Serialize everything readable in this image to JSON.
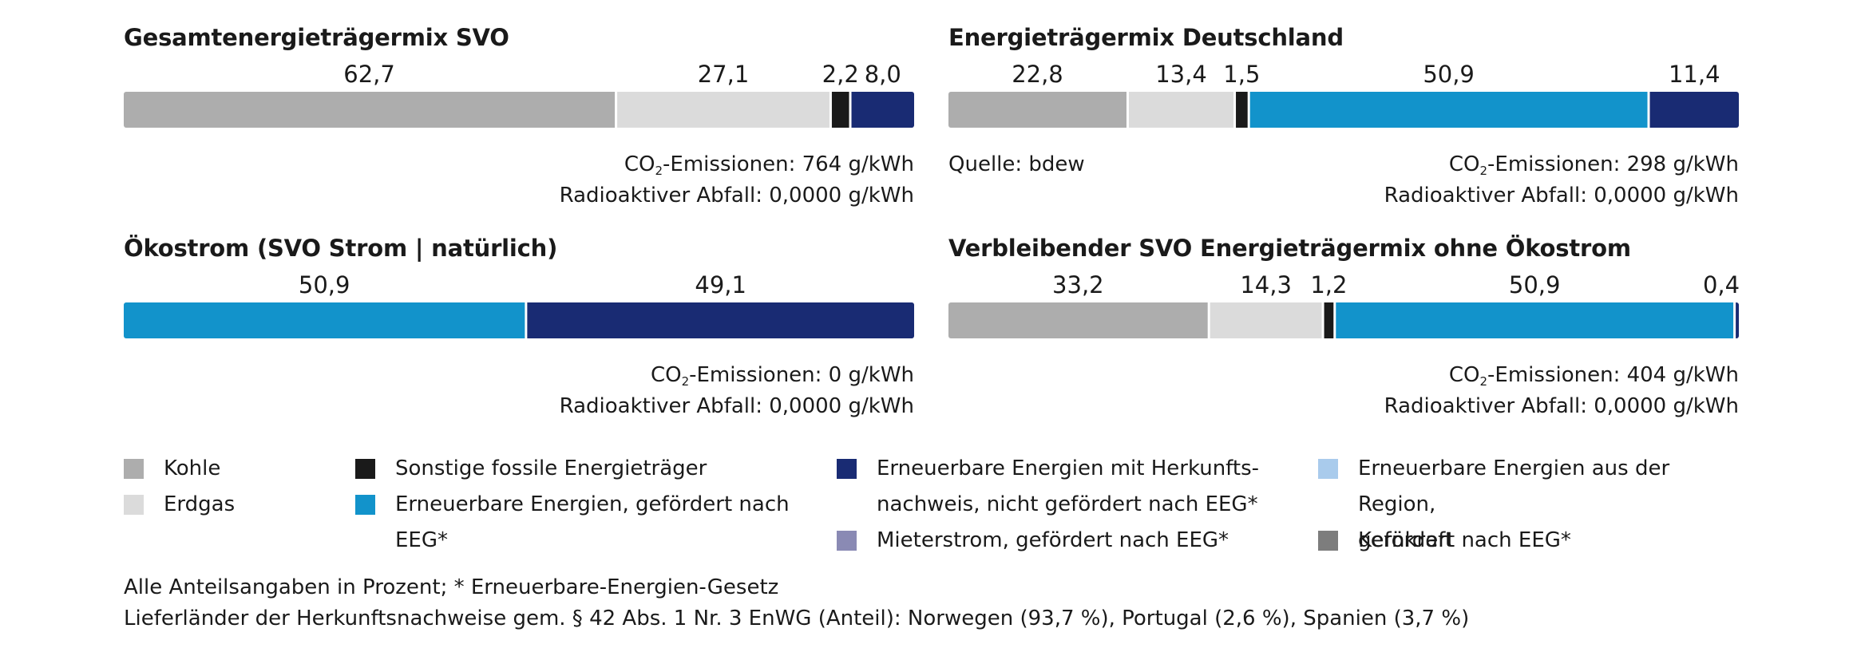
{
  "colors": {
    "kohle": "#adadad",
    "erdgas": "#dbdbdb",
    "sonstige": "#1a1a1a",
    "eeg": "#1293cb",
    "hkn": "#192b73",
    "region": "#a9cbec",
    "mieterstrom": "#8a8ab4",
    "kernkraft": "#7d7d7d"
  },
  "chart_data": [
    {
      "type": "stacked-bar",
      "title": "Gesamtenergieträgermix SVO",
      "unit": "Prozent",
      "segments": [
        {
          "category": "kohle",
          "label": "Kohle",
          "value": 62.7,
          "text": "62,7"
        },
        {
          "category": "erdgas",
          "label": "Erdgas",
          "value": 27.1,
          "text": "27,1"
        },
        {
          "category": "sonstige",
          "label": "Sonstige fossile Energieträger",
          "value": 2.2,
          "text": "2,2"
        },
        {
          "category": "hkn",
          "label": "Erneuerbare Energien mit Herkunftsnachweis",
          "value": 8.0,
          "text": "8,0"
        }
      ],
      "info": {
        "co2_prefix": "CO",
        "co2_sub": "2",
        "co2_text": "-Emissionen: 764 g/kWh",
        "waste": "Radioaktiver Abfall: 0,0000 g/kWh"
      }
    },
    {
      "type": "stacked-bar",
      "title": "Energieträgermix Deutschland",
      "unit": "Prozent",
      "segments": [
        {
          "category": "kohle",
          "label": "Kohle",
          "value": 22.8,
          "text": "22,8"
        },
        {
          "category": "erdgas",
          "label": "Erdgas",
          "value": 13.4,
          "text": "13,4"
        },
        {
          "category": "sonstige",
          "label": "Sonstige fossile Energieträger",
          "value": 1.5,
          "text": "1,5"
        },
        {
          "category": "eeg",
          "label": "Erneuerbare Energien, gefördert nach EEG",
          "value": 50.9,
          "text": "50,9"
        },
        {
          "category": "hkn",
          "label": "Erneuerbare Energien mit Herkunftsnachweis",
          "value": 11.4,
          "text": "11,4"
        }
      ],
      "source": "Quelle: bdew",
      "info": {
        "co2_prefix": "CO",
        "co2_sub": "2",
        "co2_text": "-Emissionen: 298 g/kWh",
        "waste": "Radioaktiver Abfall: 0,0000 g/kWh"
      }
    },
    {
      "type": "stacked-bar",
      "title": "Ökostrom (SVO Strom | natürlich)",
      "unit": "Prozent",
      "segments": [
        {
          "category": "eeg",
          "label": "Erneuerbare Energien, gefördert nach EEG",
          "value": 50.9,
          "text": "50,9"
        },
        {
          "category": "hkn",
          "label": "Erneuerbare Energien mit Herkunftsnachweis",
          "value": 49.1,
          "text": "49,1"
        }
      ],
      "info": {
        "co2_prefix": "CO",
        "co2_sub": "2",
        "co2_text": "-Emissionen: 0 g/kWh",
        "waste": "Radioaktiver Abfall: 0,0000 g/kWh"
      }
    },
    {
      "type": "stacked-bar",
      "title": "Verbleibender SVO Energieträgermix ohne Ökostrom",
      "unit": "Prozent",
      "segments": [
        {
          "category": "kohle",
          "label": "Kohle",
          "value": 33.2,
          "text": "33,2"
        },
        {
          "category": "erdgas",
          "label": "Erdgas",
          "value": 14.3,
          "text": "14,3"
        },
        {
          "category": "sonstige",
          "label": "Sonstige fossile Energieträger",
          "value": 1.2,
          "text": "1,2"
        },
        {
          "category": "eeg",
          "label": "Erneuerbare Energien, gefördert nach EEG",
          "value": 50.9,
          "text": "50,9"
        },
        {
          "category": "hkn",
          "label": "Erneuerbare Energien mit Herkunftsnachweis",
          "value": 0.4,
          "text": "0,4"
        }
      ],
      "info": {
        "co2_prefix": "CO",
        "co2_sub": "2",
        "co2_text": "-Emissionen: 404 g/kWh",
        "waste": "Radioaktiver Abfall: 0,0000 g/kWh"
      }
    }
  ],
  "legend": [
    {
      "category": "kohle",
      "label": "Kohle"
    },
    {
      "category": "erdgas",
      "label": "Erdgas"
    },
    {
      "category": "sonstige",
      "label": "Sonstige fossile Energieträger"
    },
    {
      "category": "eeg",
      "label": "Erneuerbare Energien, gefördert nach\nEEG*"
    },
    {
      "category": "hkn",
      "label": "Erneuerbare Energien mit Herkunfts-\nnachweis, nicht gefördert nach EEG*"
    },
    {
      "category": "mieterstrom",
      "label": "Mieterstrom, gefördert nach EEG*"
    },
    {
      "category": "region",
      "label": "Erneuerbare Energien aus der Region,\ngefördert nach EEG*"
    },
    {
      "category": "kernkraft",
      "label": "Kernkraft"
    }
  ],
  "footnotes": {
    "line1": "Alle Anteilsangaben in Prozent; * Erneuerbare-Energien-Gesetz",
    "line2": "Lieferländer der Herkunftsnachweise gem. § 42 Abs. 1 Nr. 3 EnWG (Anteil): Norwegen (93,7 %), Portugal (2,6 %), Spanien (3,7 %)"
  }
}
